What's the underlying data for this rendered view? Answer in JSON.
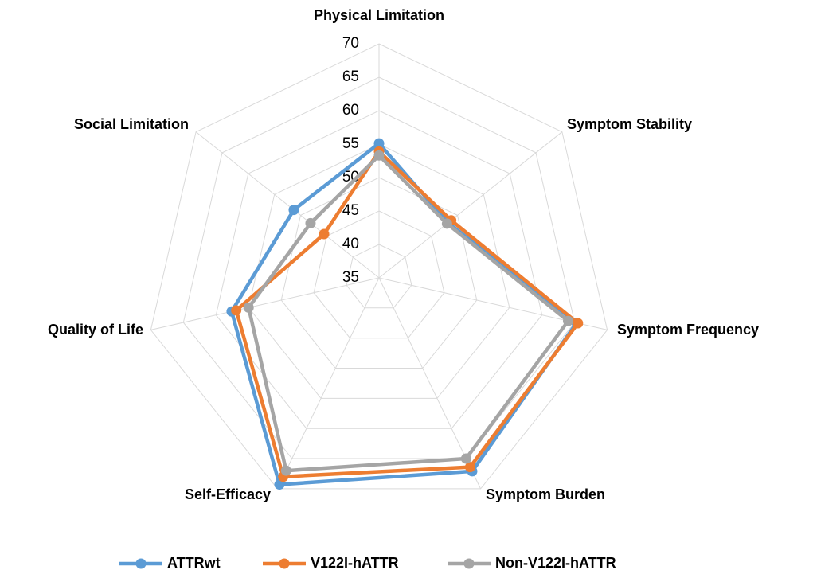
{
  "chart_data": {
    "type": "radar",
    "categories": [
      "Physical Limitation",
      "Symptom Stability",
      "Symptom Frequency",
      "Symptom Burden",
      "Self-Efficacy",
      "Quality of Life",
      "Social Limitation"
    ],
    "series": [
      {
        "name": "ATTRwt",
        "color": "#5b9bd5",
        "values": [
          55.1,
          48.2,
          65.3,
          67.1,
          69.3,
          57.6,
          51.3
        ]
      },
      {
        "name": "V122I-hATTR",
        "color": "#ed7d31",
        "values": [
          53.9,
          48.8,
          65.5,
          66.4,
          68.0,
          56.9,
          45.5
        ]
      },
      {
        "name": "Non-V122I-hATTR",
        "color": "#a5a5a5",
        "values": [
          53.3,
          48.0,
          64.0,
          65.0,
          67.0,
          55.0,
          48.1
        ]
      }
    ],
    "ylim": [
      35,
      70
    ],
    "yticks": [
      35,
      40,
      45,
      50,
      55,
      60,
      65,
      70
    ],
    "grid": true,
    "legend": "bottom"
  }
}
